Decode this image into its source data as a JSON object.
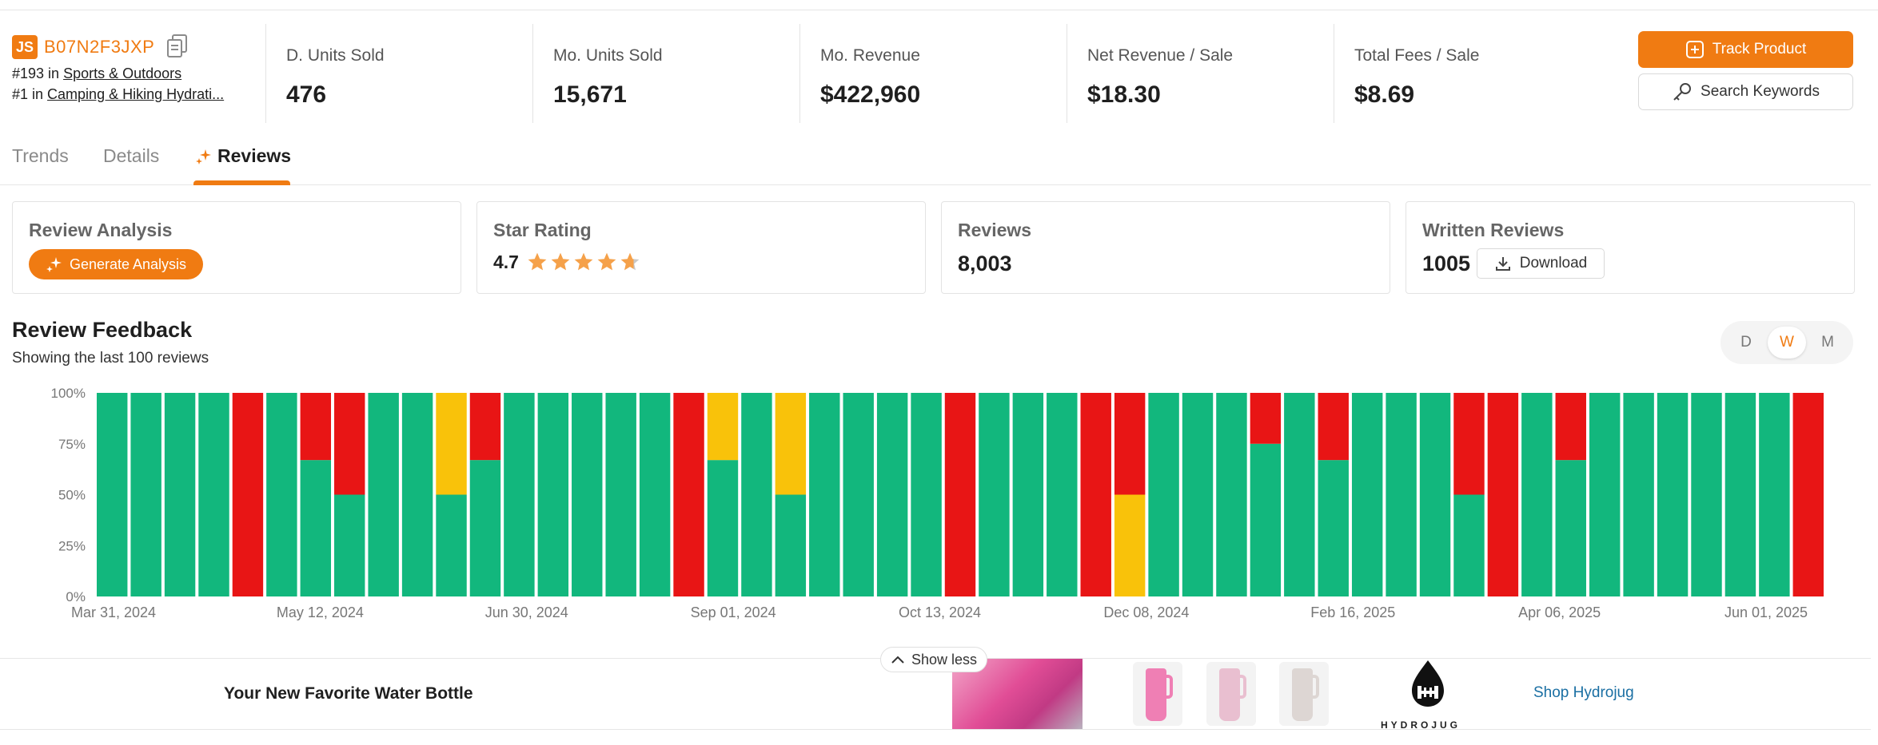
{
  "product": {
    "logo_text": "JS",
    "asin": "B07N2F3JXP",
    "ranks": [
      {
        "prefix": "#193 in ",
        "category": "Sports & Outdoors"
      },
      {
        "prefix": "#1 in ",
        "category": "Camping & Hiking Hydrati..."
      }
    ]
  },
  "metrics": [
    {
      "label": "D. Units Sold",
      "value": "476"
    },
    {
      "label": "Mo. Units Sold",
      "value": "15,671"
    },
    {
      "label": "Mo. Revenue",
      "value": "$422,960"
    },
    {
      "label": "Net Revenue / Sale",
      "value": "$18.30"
    },
    {
      "label": "Total Fees / Sale",
      "value": "$8.69"
    }
  ],
  "actions": {
    "track_label": "Track Product",
    "search_label": "Search Keywords"
  },
  "tabs": [
    {
      "label": "Trends",
      "active": false
    },
    {
      "label": "Details",
      "active": false
    },
    {
      "label": "Reviews",
      "active": true
    }
  ],
  "cards": {
    "analysis": {
      "title": "Review Analysis",
      "button": "Generate Analysis"
    },
    "star": {
      "title": "Star Rating",
      "value": "4.7",
      "rating": 4.7
    },
    "reviews": {
      "title": "Reviews",
      "value": "8,003"
    },
    "written": {
      "title": "Written Reviews",
      "value": "1005",
      "button": "Download"
    }
  },
  "feedback": {
    "title": "Review Feedback",
    "subtitle": "Showing the last 100 reviews",
    "periods": [
      "D",
      "W",
      "M"
    ],
    "selected_period": "W"
  },
  "chart_data": {
    "type": "bar",
    "stacked": true,
    "y_ticks": [
      "100%",
      "75%",
      "50%",
      "25%",
      "0%"
    ],
    "x_tick_labels": [
      "Mar 31, 2024",
      "May 12, 2024",
      "Jun 30, 2024",
      "Sep 01, 2024",
      "Oct 13, 2024",
      "Dec 08, 2024",
      "Feb 16, 2025",
      "Apr 06, 2025",
      "Jun 01, 2025"
    ],
    "ylim": [
      0,
      100
    ],
    "colors": {
      "positive": "#12b77d",
      "neutral": "#f9c20a",
      "negative": "#e81515"
    },
    "series": [
      {
        "key": "positive",
        "values": [
          100,
          100,
          100,
          100,
          0,
          100,
          67,
          50,
          100,
          100,
          50,
          67,
          100,
          100,
          100,
          100,
          100,
          0,
          67,
          100,
          50,
          100,
          100,
          100,
          100,
          0,
          100,
          100,
          100,
          0,
          0,
          100,
          100,
          100,
          75,
          100,
          67,
          100,
          100,
          100,
          50,
          0,
          100,
          67,
          100,
          100,
          100,
          100,
          100,
          100,
          0
        ]
      },
      {
        "key": "neutral",
        "values": [
          0,
          0,
          0,
          0,
          0,
          0,
          0,
          0,
          0,
          0,
          50,
          0,
          0,
          0,
          0,
          0,
          0,
          0,
          33,
          0,
          50,
          0,
          0,
          0,
          0,
          0,
          0,
          0,
          0,
          0,
          50,
          0,
          0,
          0,
          0,
          0,
          0,
          0,
          0,
          0,
          0,
          0,
          0,
          0,
          0,
          0,
          0,
          0,
          0,
          0,
          0
        ]
      },
      {
        "key": "negative",
        "values": [
          0,
          0,
          0,
          0,
          100,
          0,
          33,
          50,
          0,
          0,
          0,
          33,
          0,
          0,
          0,
          0,
          0,
          100,
          0,
          0,
          0,
          0,
          0,
          0,
          0,
          100,
          0,
          0,
          0,
          100,
          50,
          0,
          0,
          0,
          25,
          0,
          33,
          0,
          0,
          0,
          50,
          100,
          0,
          33,
          0,
          0,
          0,
          0,
          0,
          0,
          100
        ]
      }
    ]
  },
  "show_less_label": "Show less",
  "ad": {
    "title": "Your New Favorite Water Bottle",
    "brand_text": "HYDROJUG",
    "link": "Shop Hydrojug",
    "bottle_colors": [
      "#ef7fb4",
      "#e9bfd0",
      "#ddd6d3"
    ]
  }
}
